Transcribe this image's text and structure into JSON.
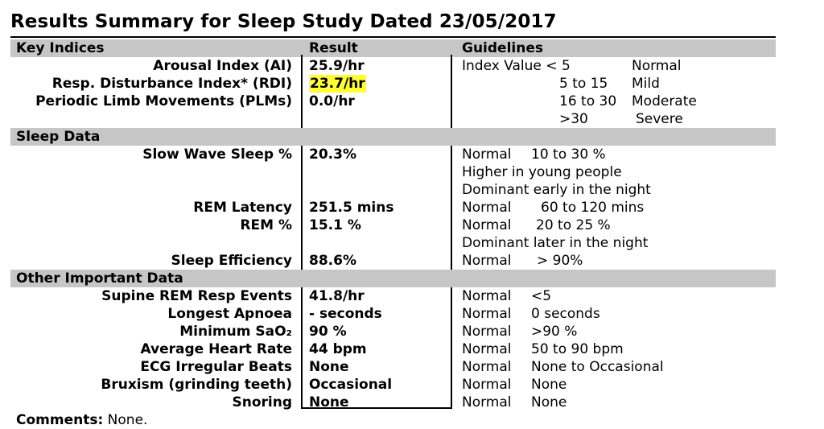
{
  "title": "Results Summary for Sleep Study Dated 23/05/2017",
  "headers": {
    "key_indices": "Key Indices",
    "result": "Result",
    "guidelines": "Guidelines"
  },
  "key_indices": [
    {
      "label": "Arousal Index (AI)",
      "result": "25.9/hr"
    },
    {
      "label": "Resp. Disturbance Index* (RDI)",
      "result": "23.7/hr"
    },
    {
      "label": "Periodic Limb Movements (PLMs)",
      "result": "0.0/hr"
    }
  ],
  "key_guidelines": {
    "g0a": "Index Value < 5",
    "g0b": "Normal",
    "g1a": "5 to 15",
    "g1b": "Mild",
    "g2a": "16 to 30",
    "g2b": "Moderate",
    "g3a": ">30",
    "g3b": "Severe"
  },
  "sleep_data": {
    "header": "Sleep Data",
    "rows": [
      {
        "label": "Slow Wave Sleep %",
        "result": "20.3%"
      },
      {
        "label": "REM Latency",
        "result": "251.5 mins"
      },
      {
        "label": "REM %",
        "result": "15.1 %"
      },
      {
        "label": "Sleep Efficiency",
        "result": "88.6%"
      }
    ],
    "guides": [
      {
        "a": "Normal",
        "b": "10 to 30 %"
      },
      {
        "text": "Higher in young people"
      },
      {
        "text": "Dominant early in the night"
      },
      {
        "a": "Normal",
        "b": "60 to 120 mins"
      },
      {
        "a": "Normal",
        "b": "20 to 25 %"
      },
      {
        "text": "Dominant later in the night"
      },
      {
        "a": "Normal",
        "b": "> 90%"
      }
    ]
  },
  "other": {
    "header": "Other Important Data",
    "rows": [
      {
        "label": "Supine REM Resp Events",
        "result": "41.8/hr",
        "ga": "Normal",
        "gb": "<5"
      },
      {
        "label": "Longest Apnoea",
        "result": "- seconds",
        "ga": "Normal",
        "gb": "0 seconds"
      },
      {
        "label": "Minimum SaO₂",
        "result": "90 %",
        "ga": "Normal",
        "gb": ">90 %"
      },
      {
        "label": "Average Heart Rate",
        "result": "44 bpm",
        "ga": "Normal",
        "gb": "50 to 90 bpm"
      },
      {
        "label": "ECG Irregular Beats",
        "result": "None",
        "ga": "Normal",
        "gb": "None to Occasional"
      },
      {
        "label": "Bruxism (grinding teeth)",
        "result": "Occasional",
        "ga": "Normal",
        "gb": "None"
      },
      {
        "label": "Snoring",
        "result": "None",
        "ga": "Normal",
        "gb": "None"
      }
    ]
  },
  "comments": {
    "label": "Comments:",
    "text": "None."
  },
  "colors": {
    "header_bar": "#c6c6c6",
    "highlight": "#ffff33"
  }
}
